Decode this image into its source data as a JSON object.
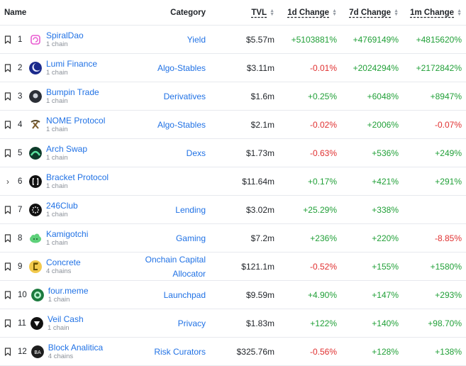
{
  "headers": {
    "name": "Name",
    "category": "Category",
    "tvl": "TVL",
    "d1": "1d Change",
    "d7": "7d Change",
    "m1": "1m Change"
  },
  "rows": [
    {
      "rank": "1",
      "name": "SpiralDao",
      "chains": "1 chain",
      "category": "Yield",
      "tvl": "$5.57m",
      "d1": "+5103881%",
      "d7": "+4769149%",
      "m1": "+4815620%",
      "logo_color": "#6b2f7a",
      "logo_icon": "spiral-icon"
    },
    {
      "rank": "2",
      "name": "Lumi Finance",
      "chains": "1 chain",
      "category": "Algo-Stables",
      "tvl": "$3.11m",
      "d1": "-0.01%",
      "d7": "+2024294%",
      "m1": "+2172842%",
      "logo_color": "#2a3fb0",
      "logo_icon": "moon-icon"
    },
    {
      "rank": "3",
      "name": "Bumpin Trade",
      "chains": "1 chain",
      "category": "Derivatives",
      "tvl": "$1.6m",
      "d1": "+0.25%",
      "d7": "+6048%",
      "m1": "+8947%",
      "logo_color": "#2b2f36",
      "logo_icon": "bumpin-icon"
    },
    {
      "rank": "4",
      "name": "NOME Protocol",
      "chains": "1 chain",
      "category": "Algo-Stables",
      "tvl": "$2.1m",
      "d1": "-0.02%",
      "d7": "+2006%",
      "m1": "-0.07%",
      "logo_color": "#ffffff",
      "logo_icon": "pickaxe-icon"
    },
    {
      "rank": "5",
      "name": "Arch Swap",
      "chains": "1 chain",
      "category": "Dexs",
      "tvl": "$1.73m",
      "d1": "-0.63%",
      "d7": "+536%",
      "m1": "+249%",
      "logo_color": "#0d3b2a",
      "logo_icon": "arch-icon"
    },
    {
      "rank": "6",
      "name": "Bracket Protocol",
      "chains": "1 chain",
      "category": "",
      "tvl": "$11.64m",
      "d1": "+0.17%",
      "d7": "+421%",
      "m1": "+291%",
      "logo_color": "#111111",
      "logo_icon": "bracket-icon",
      "expandable": true
    },
    {
      "rank": "7",
      "name": "246Club",
      "chains": "1 chain",
      "category": "Lending",
      "tvl": "$3.02m",
      "d1": "+25.29%",
      "d7": "+338%",
      "m1": "",
      "logo_color": "#111111",
      "logo_icon": "dots-icon"
    },
    {
      "rank": "8",
      "name": "Kamigotchi",
      "chains": "1 chain",
      "category": "Gaming",
      "tvl": "$7.2m",
      "d1": "+236%",
      "d7": "+220%",
      "m1": "-8.85%",
      "logo_color": "#5ed17a",
      "logo_icon": "cloud-icon"
    },
    {
      "rank": "9",
      "name": "Concrete",
      "chains": "4 chains",
      "category_lines": [
        "Onchain Capital",
        "Allocator"
      ],
      "category": "",
      "tvl": "$121.1m",
      "d1": "-0.52%",
      "d7": "+155%",
      "m1": "+1580%",
      "logo_color": "#f2c94c",
      "logo_icon": "concrete-icon"
    },
    {
      "rank": "10",
      "name": "four.meme",
      "chains": "1 chain",
      "category": "Launchpad",
      "tvl": "$9.59m",
      "d1": "+4.90%",
      "d7": "+147%",
      "m1": "+293%",
      "logo_color": "#1c7a3e",
      "logo_icon": "meme-icon"
    },
    {
      "rank": "11",
      "name": "Veil Cash",
      "chains": "1 chain",
      "category": "Privacy",
      "tvl": "$1.83m",
      "d1": "+122%",
      "d7": "+140%",
      "m1": "+98.70%",
      "logo_color": "#111111",
      "logo_icon": "veil-icon"
    },
    {
      "rank": "12",
      "name": "Block Analitica",
      "chains": "4 chains",
      "category": "Risk Curators",
      "tvl": "$325.76m",
      "d1": "-0.56%",
      "d7": "+128%",
      "m1": "+138%",
      "logo_color": "#1d1d1d",
      "logo_icon": "ba-icon"
    }
  ]
}
